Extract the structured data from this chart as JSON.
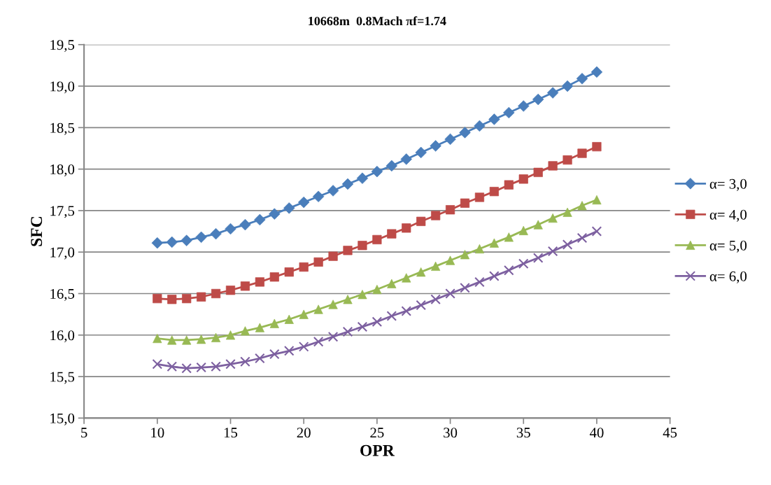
{
  "chart_data": {
    "type": "line",
    "title": "10668m  0.8Mach πf=1.74",
    "xlabel": "OPR",
    "ylabel": "SFC",
    "x": [
      10,
      11,
      12,
      13,
      14,
      15,
      16,
      17,
      18,
      19,
      20,
      21,
      22,
      23,
      24,
      25,
      26,
      27,
      28,
      29,
      30,
      31,
      32,
      33,
      34,
      35,
      36,
      37,
      38,
      39,
      40
    ],
    "series": [
      {
        "name": "α= 3,0",
        "color": "#4a7ebb",
        "marker": "diamond",
        "values": [
          17.11,
          17.12,
          17.14,
          17.18,
          17.22,
          17.28,
          17.33,
          17.39,
          17.46,
          17.53,
          17.6,
          17.67,
          17.74,
          17.82,
          17.89,
          17.97,
          18.04,
          18.12,
          18.2,
          18.28,
          18.36,
          18.44,
          18.52,
          18.6,
          18.68,
          18.76,
          18.84,
          18.92,
          19.0,
          19.09,
          19.17
        ]
      },
      {
        "name": "α= 4,0",
        "color": "#be4b48",
        "marker": "square",
        "values": [
          16.44,
          16.43,
          16.44,
          16.46,
          16.5,
          16.54,
          16.59,
          16.64,
          16.7,
          16.76,
          16.82,
          16.88,
          16.95,
          17.02,
          17.08,
          17.15,
          17.22,
          17.29,
          17.37,
          17.44,
          17.51,
          17.59,
          17.66,
          17.73,
          17.81,
          17.88,
          17.96,
          18.04,
          18.11,
          18.19,
          18.27
        ]
      },
      {
        "name": "α= 5,0",
        "color": "#98b954",
        "marker": "triangle",
        "values": [
          15.96,
          15.94,
          15.94,
          15.95,
          15.97,
          16.0,
          16.05,
          16.09,
          16.14,
          16.19,
          16.25,
          16.31,
          16.37,
          16.43,
          16.49,
          16.55,
          16.62,
          16.69,
          16.76,
          16.83,
          16.9,
          16.97,
          17.04,
          17.11,
          17.18,
          17.26,
          17.33,
          17.41,
          17.48,
          17.56,
          17.63
        ]
      },
      {
        "name": "α= 6,0",
        "color": "#7d60a0",
        "marker": "cross",
        "values": [
          15.65,
          15.62,
          15.6,
          15.61,
          15.62,
          15.65,
          15.68,
          15.72,
          15.77,
          15.81,
          15.86,
          15.92,
          15.98,
          16.04,
          16.1,
          16.16,
          16.23,
          16.29,
          16.36,
          16.43,
          16.5,
          16.57,
          16.64,
          16.71,
          16.78,
          16.86,
          16.93,
          17.01,
          17.09,
          17.17,
          17.25
        ]
      }
    ],
    "xlim": [
      5,
      45
    ],
    "xticks": [
      5,
      10,
      15,
      20,
      25,
      30,
      35,
      40,
      45
    ],
    "ylim": [
      15.0,
      19.5
    ],
    "yticks": [
      {
        "value": 15.0,
        "label": "15,0"
      },
      {
        "value": 15.5,
        "label": "15,5"
      },
      {
        "value": 16.0,
        "label": "16,0"
      },
      {
        "value": 16.5,
        "label": "16,5"
      },
      {
        "value": 17.0,
        "label": "17,0"
      },
      {
        "value": 17.5,
        "label": "17,5"
      },
      {
        "value": 18.0,
        "label": "18,0"
      },
      {
        "value": 18.5,
        "label": "18,5"
      },
      {
        "value": 19.0,
        "label": "19,0"
      },
      {
        "value": 19.5,
        "label": "19,5"
      }
    ],
    "grid": "y",
    "legend": "right",
    "line_style": "solid"
  }
}
